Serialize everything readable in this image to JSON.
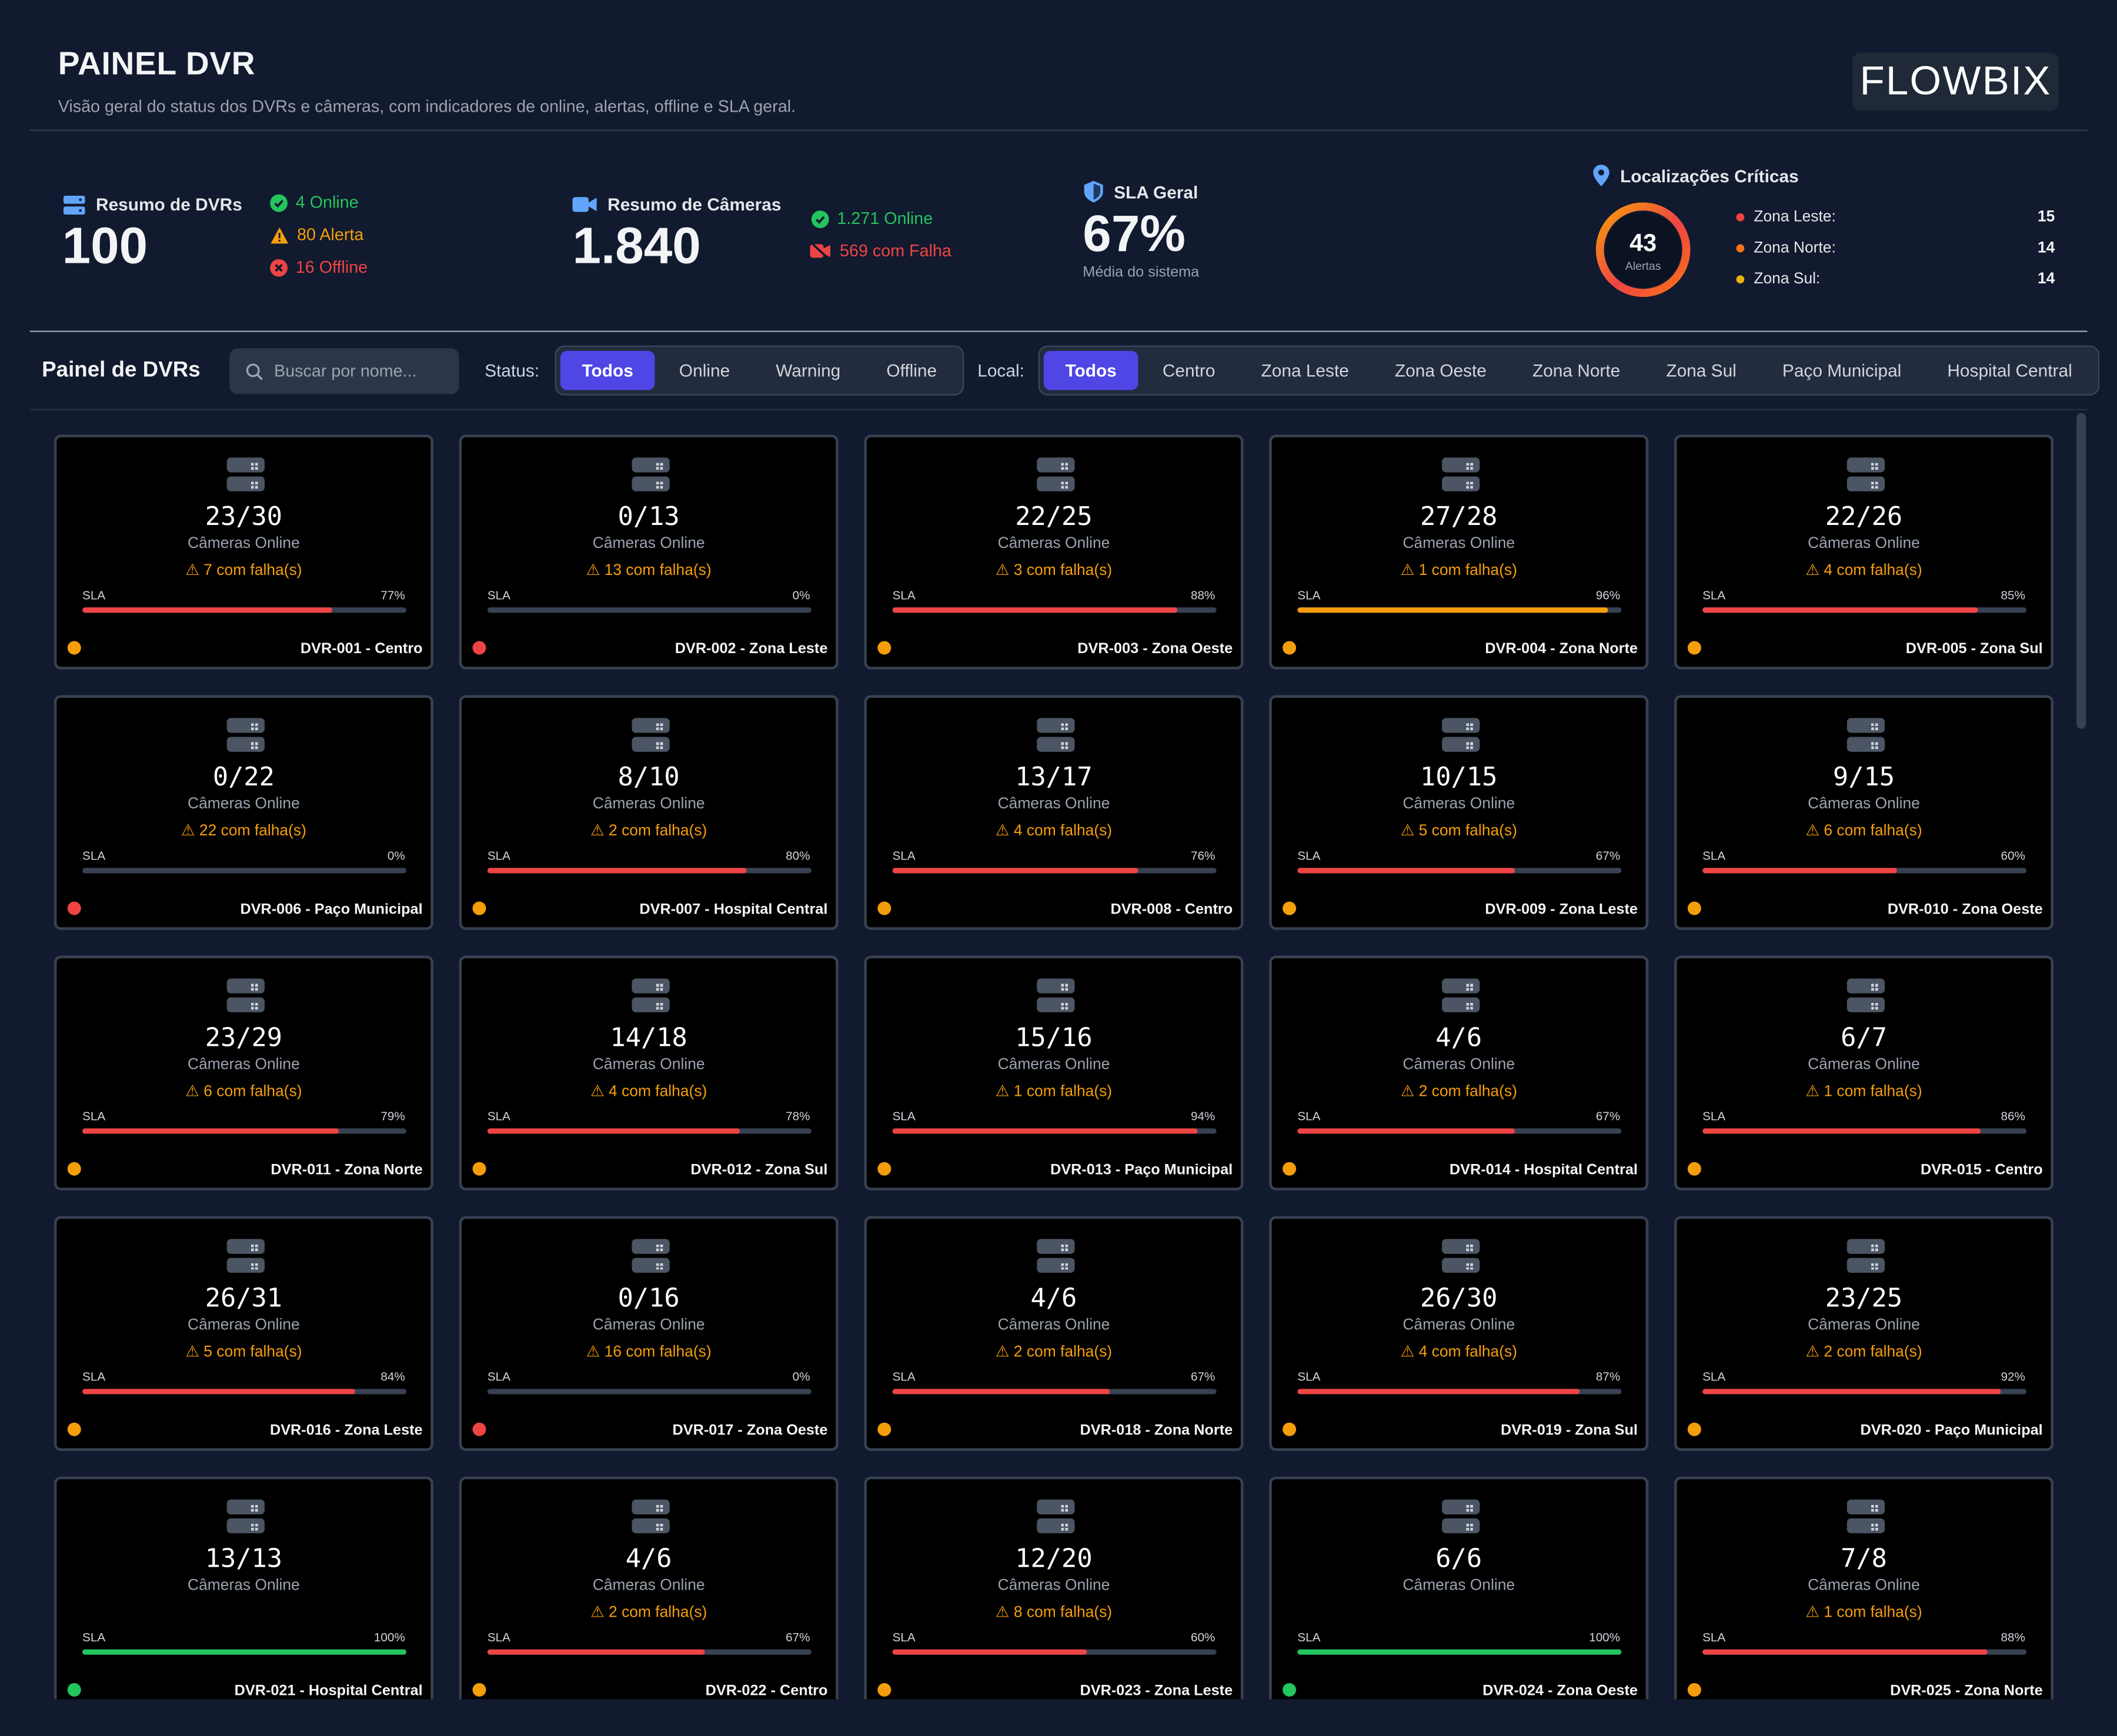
{
  "header": {
    "title": "PAINEL DVR",
    "subtitle": "Visão geral do status dos DVRs e câmeras, com indicadores de online, alertas, offline e SLA geral.",
    "logo_text": "FLOWBIX"
  },
  "summary": {
    "dvrs": {
      "label": "Resumo de DVRs",
      "total": "100",
      "online": "4 Online",
      "alert": "80 Alerta",
      "offline": "16 Offline"
    },
    "cameras": {
      "label": "Resumo de Câmeras",
      "total": "1.840",
      "online": "1.271 Online",
      "fail": "569 com Falha"
    },
    "sla": {
      "label": "SLA Geral",
      "value": "67%",
      "caption": "Média do sistema"
    },
    "critical": {
      "label": "Localizações Críticas",
      "donut_value": "43",
      "donut_caption": "Alertas",
      "rows": [
        {
          "name": "Zona Leste:",
          "count": "15",
          "color": "#ef4444"
        },
        {
          "name": "Zona Norte:",
          "count": "14",
          "color": "#f97316"
        },
        {
          "name": "Zona Sul:",
          "count": "14",
          "color": "#eab308"
        }
      ]
    }
  },
  "toolbar": {
    "title": "Painel de DVRs",
    "search_placeholder": "Buscar por nome...",
    "status_label": "Status:",
    "status_options": [
      "Todos",
      "Online",
      "Warning",
      "Offline"
    ],
    "status_active": 0,
    "local_label": "Local:",
    "local_options": [
      "Todos",
      "Centro",
      "Zona Leste",
      "Zona Oeste",
      "Zona Norte",
      "Zona Sul",
      "Paço Municipal",
      "Hospital Central"
    ],
    "local_active": 0
  },
  "card_labels": {
    "online": "Câmeras Online",
    "sla": "SLA"
  },
  "colors": {
    "online": "#22c55e",
    "warning": "#f59e0b",
    "offline": "#ef4444",
    "bar_red": "#ef4444",
    "bar_orange": "#f59e0b",
    "bar_green": "#22c55e",
    "accent": "#4f46e5"
  },
  "dvrs": [
    {
      "name": "DVR-001 - Centro",
      "cameras": "23/30",
      "fail": "7 com falha(s)",
      "sla": 77,
      "sla_text": "77%",
      "status": "warning"
    },
    {
      "name": "DVR-002 - Zona Leste",
      "cameras": "0/13",
      "fail": "13 com falha(s)",
      "sla": 0,
      "sla_text": "0%",
      "status": "offline"
    },
    {
      "name": "DVR-003 - Zona Oeste",
      "cameras": "22/25",
      "fail": "3 com falha(s)",
      "sla": 88,
      "sla_text": "88%",
      "status": "warning"
    },
    {
      "name": "DVR-004 - Zona Norte",
      "cameras": "27/28",
      "fail": "1 com falha(s)",
      "sla": 96,
      "sla_text": "96%",
      "status": "warning"
    },
    {
      "name": "DVR-005 - Zona Sul",
      "cameras": "22/26",
      "fail": "4 com falha(s)",
      "sla": 85,
      "sla_text": "85%",
      "status": "warning"
    },
    {
      "name": "DVR-006 - Paço Municipal",
      "cameras": "0/22",
      "fail": "22 com falha(s)",
      "sla": 0,
      "sla_text": "0%",
      "status": "offline"
    },
    {
      "name": "DVR-007 - Hospital Central",
      "cameras": "8/10",
      "fail": "2 com falha(s)",
      "sla": 80,
      "sla_text": "80%",
      "status": "warning"
    },
    {
      "name": "DVR-008 - Centro",
      "cameras": "13/17",
      "fail": "4 com falha(s)",
      "sla": 76,
      "sla_text": "76%",
      "status": "warning"
    },
    {
      "name": "DVR-009 - Zona Leste",
      "cameras": "10/15",
      "fail": "5 com falha(s)",
      "sla": 67,
      "sla_text": "67%",
      "status": "warning"
    },
    {
      "name": "DVR-010 - Zona Oeste",
      "cameras": "9/15",
      "fail": "6 com falha(s)",
      "sla": 60,
      "sla_text": "60%",
      "status": "warning"
    },
    {
      "name": "DVR-011 - Zona Norte",
      "cameras": "23/29",
      "fail": "6 com falha(s)",
      "sla": 79,
      "sla_text": "79%",
      "status": "warning"
    },
    {
      "name": "DVR-012 - Zona Sul",
      "cameras": "14/18",
      "fail": "4 com falha(s)",
      "sla": 78,
      "sla_text": "78%",
      "status": "warning"
    },
    {
      "name": "DVR-013 - Paço Municipal",
      "cameras": "15/16",
      "fail": "1 com falha(s)",
      "sla": 94,
      "sla_text": "94%",
      "status": "warning"
    },
    {
      "name": "DVR-014 - Hospital Central",
      "cameras": "4/6",
      "fail": "2 com falha(s)",
      "sla": 67,
      "sla_text": "67%",
      "status": "warning"
    },
    {
      "name": "DVR-015 - Centro",
      "cameras": "6/7",
      "fail": "1 com falha(s)",
      "sla": 86,
      "sla_text": "86%",
      "status": "warning"
    },
    {
      "name": "DVR-016 - Zona Leste",
      "cameras": "26/31",
      "fail": "5 com falha(s)",
      "sla": 84,
      "sla_text": "84%",
      "status": "warning"
    },
    {
      "name": "DVR-017 - Zona Oeste",
      "cameras": "0/16",
      "fail": "16 com falha(s)",
      "sla": 0,
      "sla_text": "0%",
      "status": "offline"
    },
    {
      "name": "DVR-018 - Zona Norte",
      "cameras": "4/6",
      "fail": "2 com falha(s)",
      "sla": 67,
      "sla_text": "67%",
      "status": "warning"
    },
    {
      "name": "DVR-019 - Zona Sul",
      "cameras": "26/30",
      "fail": "4 com falha(s)",
      "sla": 87,
      "sla_text": "87%",
      "status": "warning"
    },
    {
      "name": "DVR-020 - Paço Municipal",
      "cameras": "23/25",
      "fail": "2 com falha(s)",
      "sla": 92,
      "sla_text": "92%",
      "status": "warning"
    },
    {
      "name": "DVR-021 - Hospital Central",
      "cameras": "13/13",
      "fail": "",
      "sla": 100,
      "sla_text": "100%",
      "status": "online"
    },
    {
      "name": "DVR-022 - Centro",
      "cameras": "4/6",
      "fail": "2 com falha(s)",
      "sla": 67,
      "sla_text": "67%",
      "status": "warning"
    },
    {
      "name": "DVR-023 - Zona Leste",
      "cameras": "12/20",
      "fail": "8 com falha(s)",
      "sla": 60,
      "sla_text": "60%",
      "status": "warning"
    },
    {
      "name": "DVR-024 - Zona Oeste",
      "cameras": "6/6",
      "fail": "",
      "sla": 100,
      "sla_text": "100%",
      "status": "online"
    },
    {
      "name": "DVR-025 - Zona Norte",
      "cameras": "7/8",
      "fail": "1 com falha(s)",
      "sla": 88,
      "sla_text": "88%",
      "status": "warning"
    }
  ]
}
